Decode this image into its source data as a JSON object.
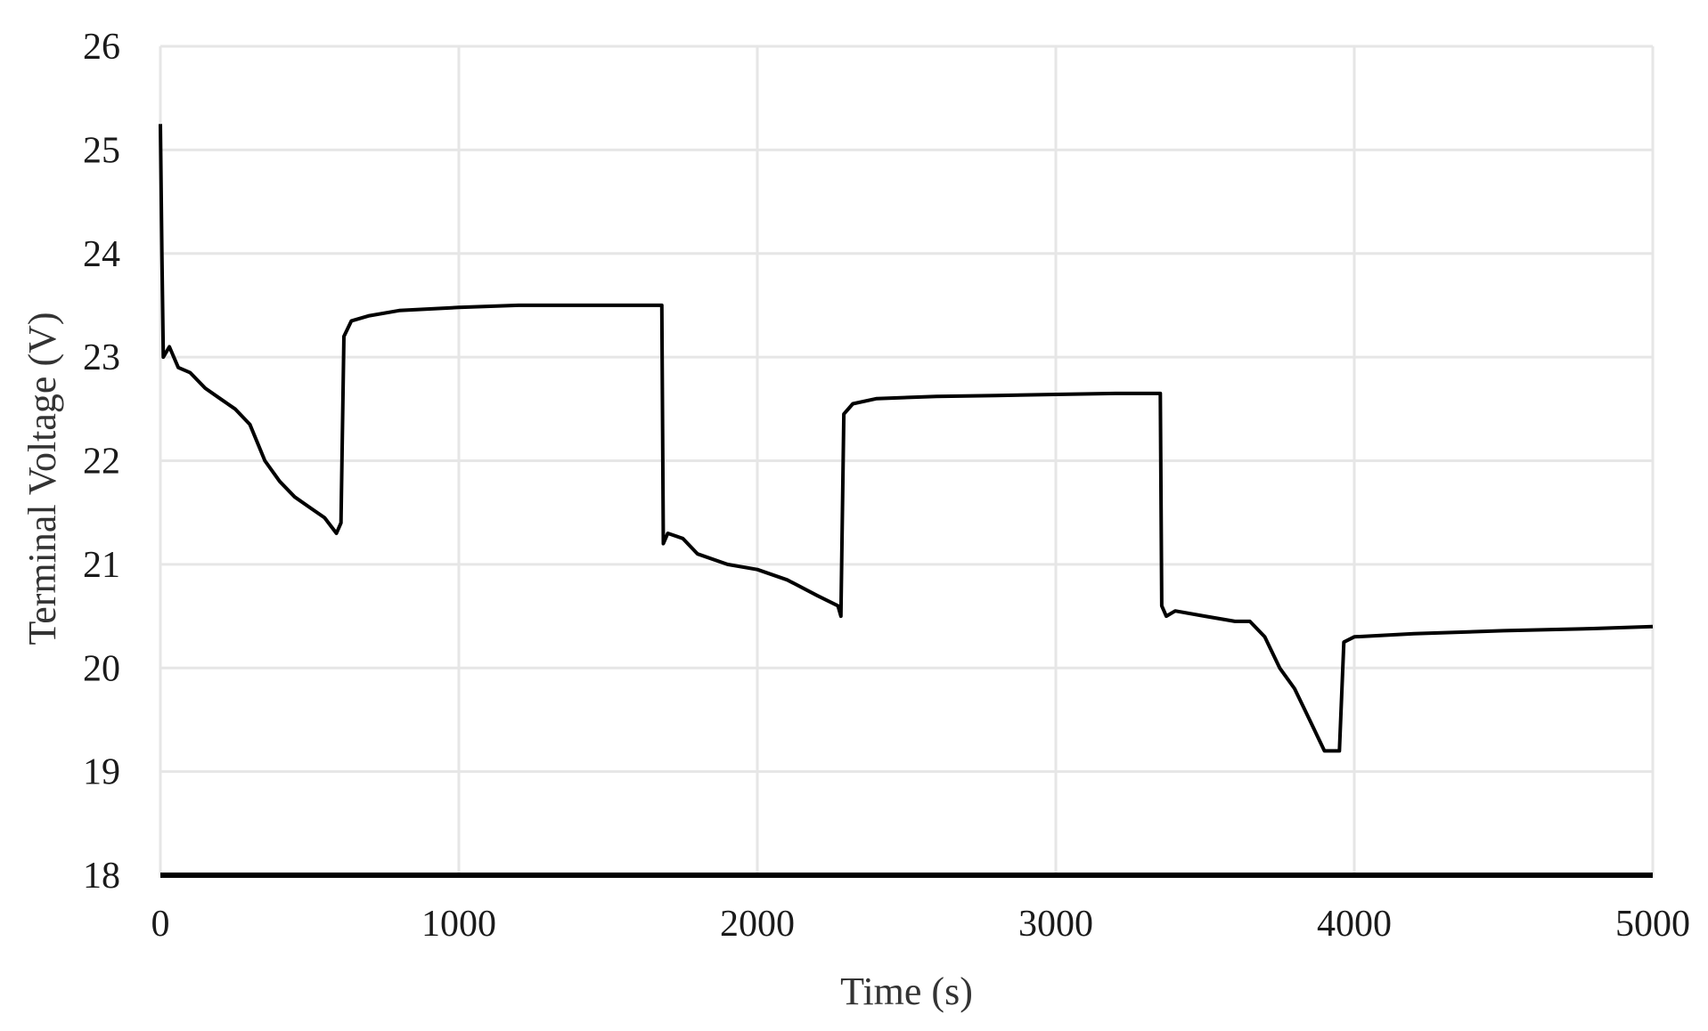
{
  "chart_data": {
    "type": "line",
    "title": "",
    "xlabel": "Time (s)",
    "ylabel": "Terminal Voltage (V)",
    "xlim": [
      0,
      5000
    ],
    "ylim": [
      18,
      26
    ],
    "x_ticks": [
      0,
      1000,
      2000,
      3000,
      4000,
      5000
    ],
    "y_ticks": [
      18,
      19,
      20,
      21,
      22,
      23,
      24,
      25,
      26
    ],
    "x_tick_labels": [
      "0",
      "1000",
      "2000",
      "3000",
      "4000",
      "5000"
    ],
    "y_tick_labels": [
      "18",
      "19",
      "20",
      "21",
      "22",
      "23",
      "24",
      "25",
      "26"
    ],
    "grid": true,
    "legend": "none",
    "colors": {
      "series": "#000000",
      "grid": "#e6e6e6",
      "axis": "#000000"
    },
    "series": [
      {
        "x": [
          0,
          5,
          10,
          30,
          60,
          100,
          150,
          200,
          250,
          300,
          350,
          400,
          450,
          500,
          550,
          590,
          605,
          615,
          640,
          700,
          800,
          1000,
          1200,
          1400,
          1600,
          1680,
          1685,
          1700,
          1750,
          1800,
          1900,
          2000,
          2100,
          2200,
          2270,
          2280,
          2290,
          2320,
          2400,
          2600,
          2800,
          3000,
          3200,
          3350,
          3355,
          3370,
          3400,
          3500,
          3600,
          3650,
          3700,
          3750,
          3800,
          3850,
          3900,
          3940,
          3950,
          3965,
          4000,
          4200,
          4500,
          4800,
          5000
        ],
        "y": [
          25.25,
          24.0,
          23.0,
          23.1,
          22.9,
          22.85,
          22.7,
          22.6,
          22.5,
          22.35,
          22.0,
          21.8,
          21.65,
          21.55,
          21.45,
          21.3,
          21.4,
          23.2,
          23.35,
          23.4,
          23.45,
          23.48,
          23.5,
          23.5,
          23.5,
          23.5,
          21.2,
          21.3,
          21.25,
          21.1,
          21.0,
          20.95,
          20.85,
          20.7,
          20.6,
          20.5,
          22.45,
          22.55,
          22.6,
          22.62,
          22.63,
          22.64,
          22.65,
          22.65,
          20.6,
          20.5,
          20.55,
          20.5,
          20.45,
          20.45,
          20.3,
          20.0,
          19.8,
          19.5,
          19.2,
          19.2,
          19.2,
          20.25,
          20.3,
          20.33,
          20.36,
          20.38,
          20.4
        ]
      }
    ]
  }
}
